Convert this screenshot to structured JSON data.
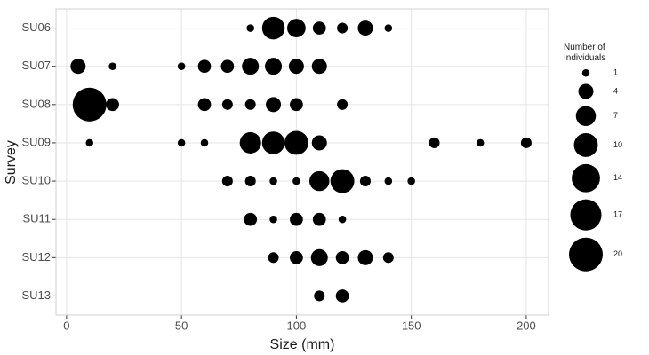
{
  "chart_data": {
    "type": "bubble",
    "x_label": "Size (mm)",
    "y_label": "Survey",
    "categories": [
      "SU06",
      "SU07",
      "SU08",
      "SU09",
      "SU10",
      "SU11",
      "SU12",
      "SU13"
    ],
    "x": [
      80,
      90,
      100,
      110,
      120,
      130,
      140,
      5,
      20,
      50,
      60,
      70,
      80,
      90,
      100,
      110,
      10,
      20,
      60,
      70,
      80,
      90,
      100,
      120,
      10,
      50,
      60,
      80,
      90,
      100,
      110,
      160,
      180,
      200,
      70,
      80,
      90,
      100,
      110,
      120,
      130,
      140,
      150,
      80,
      90,
      100,
      110,
      120,
      90,
      100,
      110,
      120,
      130,
      140,
      110,
      120
    ],
    "y": [
      "SU06",
      "SU06",
      "SU06",
      "SU06",
      "SU06",
      "SU06",
      "SU06",
      "SU07",
      "SU07",
      "SU07",
      "SU07",
      "SU07",
      "SU07",
      "SU07",
      "SU07",
      "SU07",
      "SU08",
      "SU08",
      "SU08",
      "SU08",
      "SU08",
      "SU08",
      "SU08",
      "SU08",
      "SU09",
      "SU09",
      "SU09",
      "SU09",
      "SU09",
      "SU09",
      "SU09",
      "SU09",
      "SU09",
      "SU09",
      "SU10",
      "SU10",
      "SU10",
      "SU10",
      "SU10",
      "SU10",
      "SU10",
      "SU10",
      "SU10",
      "SU11",
      "SU11",
      "SU11",
      "SU11",
      "SU11",
      "SU12",
      "SU12",
      "SU12",
      "SU12",
      "SU12",
      "SU12",
      "SU13",
      "SU13"
    ],
    "sizes": [
      1,
      9,
      6,
      3,
      2,
      4,
      1,
      4,
      1,
      1,
      3,
      3,
      5,
      5,
      4,
      4,
      20,
      3,
      3,
      2,
      2,
      4,
      3,
      2,
      1,
      1,
      1,
      8,
      9,
      10,
      4,
      2,
      1,
      2,
      2,
      2,
      1,
      1,
      7,
      10,
      2,
      1,
      1,
      3,
      1,
      3,
      3,
      1,
      2,
      3,
      5,
      3,
      4,
      2,
      2,
      3
    ],
    "color": "#000000",
    "xlim": [
      -4.6,
      209.7
    ],
    "xticks": [
      0,
      50,
      100,
      150,
      200
    ],
    "grid": true,
    "size_legend": {
      "title": "Number of Individuals",
      "values": [
        1,
        4,
        7,
        10,
        14,
        17,
        20
      ]
    }
  }
}
